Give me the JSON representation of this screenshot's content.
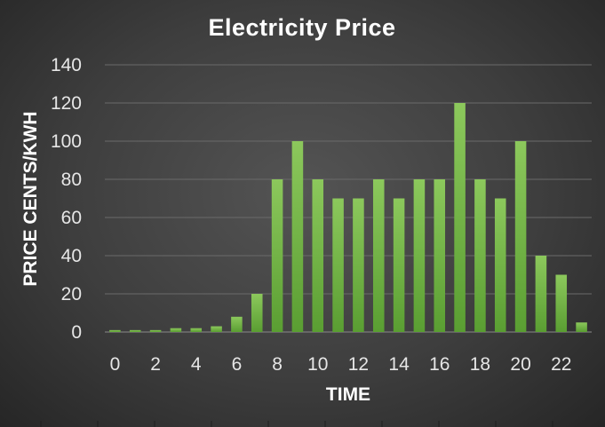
{
  "chart_data": {
    "type": "bar",
    "title": "Electricity Price",
    "xlabel": "TIME",
    "ylabel": "PRICE CENTS/KWH",
    "x": [
      0,
      1,
      2,
      3,
      4,
      5,
      6,
      7,
      8,
      9,
      10,
      11,
      12,
      13,
      14,
      15,
      16,
      17,
      18,
      19,
      20,
      21,
      22,
      23
    ],
    "x_tick_labels": [
      "0",
      "2",
      "4",
      "6",
      "8",
      "10",
      "12",
      "14",
      "16",
      "18",
      "20",
      "22"
    ],
    "values": [
      1,
      1,
      1,
      2,
      2,
      3,
      8,
      20,
      80,
      100,
      80,
      70,
      70,
      80,
      70,
      80,
      80,
      120,
      80,
      70,
      100,
      40,
      30,
      5
    ],
    "ylim": [
      0,
      140
    ],
    "y_ticks": [
      0,
      20,
      40,
      60,
      80,
      100,
      120,
      140
    ],
    "grid": true,
    "legend": "none",
    "colors": {
      "bar_top": "#8cc85c",
      "bar_bottom": "#5a9e32",
      "background": "#404040"
    }
  }
}
